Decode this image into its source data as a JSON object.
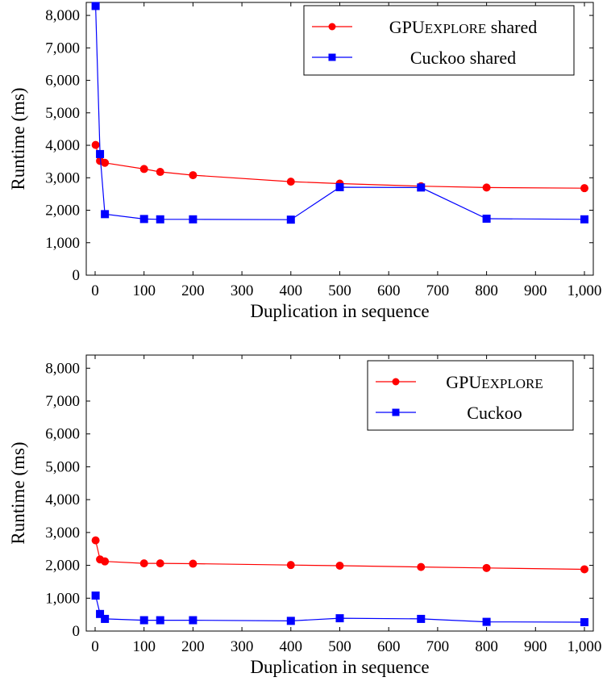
{
  "chart_data": [
    {
      "type": "line",
      "xlabel": "Duplication in sequence",
      "ylabel": "Runtime (ms)",
      "xlim": [
        0,
        1000
      ],
      "ylim": [
        0,
        8400
      ],
      "x_ticks": [
        0,
        100,
        200,
        300,
        400,
        500,
        600,
        700,
        800,
        900,
        1000
      ],
      "x_tick_labels": [
        "0",
        "100",
        "200",
        "300",
        "400",
        "500",
        "600",
        "700",
        "800",
        "900",
        "1,000"
      ],
      "y_ticks": [
        0,
        1000,
        2000,
        3000,
        4000,
        5000,
        6000,
        7000,
        8000
      ],
      "y_tick_labels": [
        "0",
        "1,000",
        "2,000",
        "3,000",
        "4,000",
        "5,000",
        "6,000",
        "7,000",
        "8,000"
      ],
      "grid": false,
      "legend_position": "top-right",
      "series": [
        {
          "name_main": "GPU",
          "name_smallcaps": "EXPLORE",
          "name_suffix": " shared",
          "color": "#ff0000",
          "marker": "circle",
          "x": [
            1,
            10,
            20,
            100,
            133,
            200,
            400,
            500,
            666,
            800,
            1000
          ],
          "y": [
            4010,
            3520,
            3460,
            3270,
            3180,
            3080,
            2880,
            2820,
            2740,
            2700,
            2680
          ]
        },
        {
          "name_main": "Cuckoo shared",
          "name_smallcaps": "",
          "name_suffix": "",
          "color": "#0000ff",
          "marker": "square",
          "x": [
            1,
            10,
            20,
            100,
            133,
            200,
            400,
            500,
            666,
            800,
            1000
          ],
          "y": [
            8290,
            3730,
            1880,
            1730,
            1720,
            1720,
            1710,
            2710,
            2700,
            1740,
            1720
          ]
        }
      ]
    },
    {
      "type": "line",
      "xlabel": "Duplication in sequence",
      "ylabel": "Runtime (ms)",
      "xlim": [
        0,
        1000
      ],
      "ylim": [
        0,
        8400
      ],
      "x_ticks": [
        0,
        100,
        200,
        300,
        400,
        500,
        600,
        700,
        800,
        900,
        1000
      ],
      "x_tick_labels": [
        "0",
        "100",
        "200",
        "300",
        "400",
        "500",
        "600",
        "700",
        "800",
        "900",
        "1,000"
      ],
      "y_ticks": [
        0,
        1000,
        2000,
        3000,
        4000,
        5000,
        6000,
        7000,
        8000
      ],
      "y_tick_labels": [
        "0",
        "1,000",
        "2,000",
        "3,000",
        "4,000",
        "5,000",
        "6,000",
        "7,000",
        "8,000"
      ],
      "grid": false,
      "legend_position": "top-right",
      "series": [
        {
          "name_main": "GPU",
          "name_smallcaps": "EXPLORE",
          "name_suffix": "",
          "color": "#ff0000",
          "marker": "circle",
          "x": [
            1,
            10,
            20,
            100,
            133,
            200,
            400,
            500,
            666,
            800,
            1000
          ],
          "y": [
            2760,
            2180,
            2120,
            2060,
            2060,
            2050,
            2010,
            1990,
            1950,
            1920,
            1880
          ]
        },
        {
          "name_main": "Cuckoo",
          "name_smallcaps": "",
          "name_suffix": "",
          "color": "#0000ff",
          "marker": "square",
          "x": [
            1,
            10,
            20,
            100,
            133,
            200,
            400,
            500,
            666,
            800,
            1000
          ],
          "y": [
            1080,
            520,
            370,
            330,
            330,
            330,
            310,
            390,
            370,
            280,
            270
          ]
        }
      ]
    }
  ]
}
